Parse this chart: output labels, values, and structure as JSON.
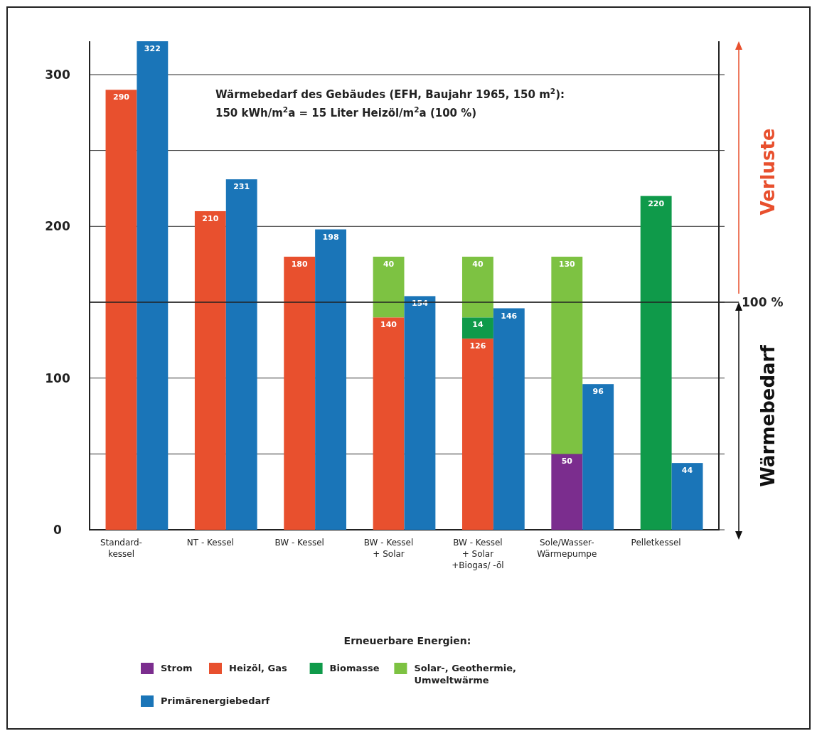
{
  "chart_data": {
    "type": "bar",
    "stacked": true,
    "categories": [
      "Standard-\nkessel",
      null,
      "NT - Kessel",
      null,
      "BW - Kessel",
      null,
      "BW - Kessel\n+ Solar",
      null,
      "BW - Kessel\n+ Solar\n+Biogas/ -öl",
      null,
      "Sole/Wasser-\nWärmepumpe",
      null,
      "Pelletkessel",
      null
    ],
    "series": [
      {
        "name": "Strom",
        "color": "#7b2d8e",
        "values": [
          null,
          null,
          null,
          null,
          null,
          null,
          null,
          null,
          null,
          null,
          50,
          null,
          null,
          null
        ]
      },
      {
        "name": "Heizöl, Gas",
        "color": "#e8502e",
        "values": [
          290,
          null,
          210,
          null,
          180,
          null,
          140,
          null,
          126,
          null,
          null,
          null,
          null,
          null
        ]
      },
      {
        "name": "Biomasse",
        "color": "#0f9a4a",
        "values": [
          null,
          null,
          null,
          null,
          null,
          null,
          null,
          null,
          14,
          null,
          null,
          null,
          220,
          null
        ]
      },
      {
        "name": "Solar-, Geothermie, Umweltwärme",
        "color": "#7dc242",
        "values": [
          null,
          null,
          null,
          null,
          null,
          null,
          40,
          null,
          40,
          null,
          130,
          null,
          null,
          null
        ]
      },
      {
        "name": "Primärenergiebedarf",
        "color": "#1a75b8",
        "values": [
          null,
          322,
          null,
          231,
          null,
          198,
          null,
          154,
          null,
          146,
          null,
          96,
          null,
          44
        ]
      }
    ],
    "ylim": [
      0,
      322
    ],
    "yticks": [
      0,
      {
        "value": 50,
        "label": null
      },
      100,
      {
        "value": 150,
        "label": null
      },
      200,
      {
        "value": 250,
        "label": null
      },
      300
    ],
    "grid": "y",
    "data_labels": true,
    "legend": "bottom",
    "legend_title": "Erneuerbare Energien:",
    "annotations": [
      "Wärmebedarf des Gebäudes (EFH, Baujahr 1965, 150 m$^{2}$):",
      "150 kWh/m$^{2}$a = 15 Liter Heizöl/m$^{2}$a (100 %)",
      "Verluste",
      "Wärmebedarf",
      "100 %"
    ],
    "ref_lines": [
      {
        "axis": "y",
        "value": 150
      }
    ]
  }
}
